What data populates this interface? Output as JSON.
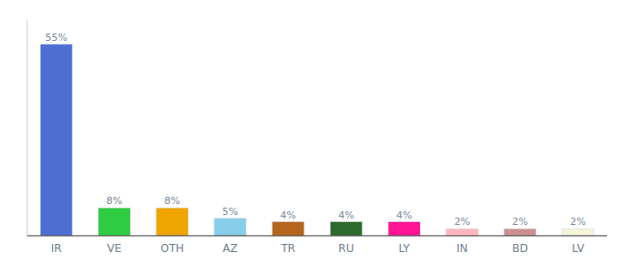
{
  "chart_data": {
    "type": "bar",
    "categories": [
      "IR",
      "VE",
      "OTH",
      "AZ",
      "TR",
      "RU",
      "LY",
      "IN",
      "BD",
      "LV"
    ],
    "values": [
      55,
      8,
      8,
      5,
      4,
      4,
      4,
      2,
      2,
      2
    ],
    "value_labels": [
      "55%",
      "8%",
      "8%",
      "5%",
      "4%",
      "4%",
      "4%",
      "2%",
      "2%",
      "2%"
    ],
    "colors": [
      "#4d6fd4",
      "#2ecc40",
      "#f0a500",
      "#87ceeb",
      "#b5651d",
      "#2d6a2d",
      "#ff1493",
      "#ffb6c1",
      "#cd9090",
      "#f5f5dc"
    ],
    "data_labels": true,
    "ylim": [
      0,
      62
    ],
    "tick_labels": "x",
    "grid": false
  }
}
